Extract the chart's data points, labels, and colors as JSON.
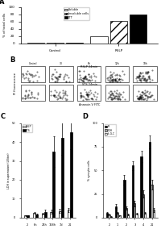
{
  "panel_A": {
    "title": "A",
    "groups": [
      "Control",
      "RSLP"
    ],
    "series": [
      "Soluble",
      "Insoluble cells",
      "LTT"
    ],
    "colors": [
      "white",
      "white",
      "black"
    ],
    "hatch": [
      "",
      "///",
      ""
    ],
    "control_values": [
      0.5,
      0.5,
      2.0
    ],
    "rslp_values": [
      18.0,
      62.0,
      78.0
    ],
    "ylabel": "% of total cells",
    "ylim": [
      0,
      100
    ],
    "yticks": [
      0,
      20,
      40,
      60,
      80,
      100
    ]
  },
  "panel_C": {
    "title": "C",
    "ylabel": "LDH in supernatant (U/liter)",
    "xlabels": [
      "2",
      "6h",
      "24h",
      "168h",
      "7d",
      "21"
    ],
    "series": [
      "RSLP",
      "STS"
    ],
    "rslp_values": [
      1.0,
      2.5,
      2.0,
      3.0,
      3.5,
      4.0
    ],
    "sts_values": [
      1.0,
      1.5,
      3.0,
      35.0,
      42.0,
      45.0
    ],
    "rslp_err": [
      0.3,
      0.5,
      0.5,
      1.0,
      1.0,
      1.0
    ],
    "sts_err": [
      0.3,
      0.5,
      1.0,
      8.0,
      9.0,
      9.0
    ],
    "ylim": [
      0,
      50
    ],
    "yticks": [
      0,
      10,
      20,
      30,
      40,
      50
    ],
    "x_positions": [
      1,
      2,
      3,
      4,
      5,
      6
    ]
  },
  "panel_D": {
    "title": "D",
    "ylabel": "% syncytia cells",
    "xlabels": [
      "2",
      "1",
      "2",
      "3",
      "4",
      "21"
    ],
    "series": [
      "PI",
      "LDH",
      "Is-G-C"
    ],
    "pi_values": [
      5.0,
      12.0,
      40.0,
      55.0,
      65.0,
      80.0
    ],
    "ldh_values": [
      3.0,
      5.0,
      10.0,
      15.0,
      25.0,
      35.0
    ],
    "isgc_values": [
      1.0,
      2.0,
      3.0,
      4.0,
      5.0,
      8.0
    ],
    "pi_err": [
      1.0,
      2.0,
      5.0,
      5.0,
      6.0,
      7.0
    ],
    "ldh_err": [
      1.0,
      1.0,
      2.0,
      3.0,
      4.0,
      5.0
    ],
    "isgc_err": [
      0.5,
      0.5,
      1.0,
      1.0,
      1.0,
      2.0
    ],
    "ylim": [
      0,
      100
    ],
    "yticks": [
      0,
      25,
      50,
      75,
      100
    ],
    "x_positions": [
      1,
      2,
      3,
      4,
      5,
      6
    ]
  },
  "panel_B": {
    "title": "B",
    "row_labels": [
      "RSLP 24min",
      "STS 24min"
    ],
    "col_labels": [
      "Control",
      "30",
      "6h",
      "12h",
      "18h"
    ],
    "xlabel": "Annexin V FITC",
    "ylabel": "PI fluorescence"
  }
}
